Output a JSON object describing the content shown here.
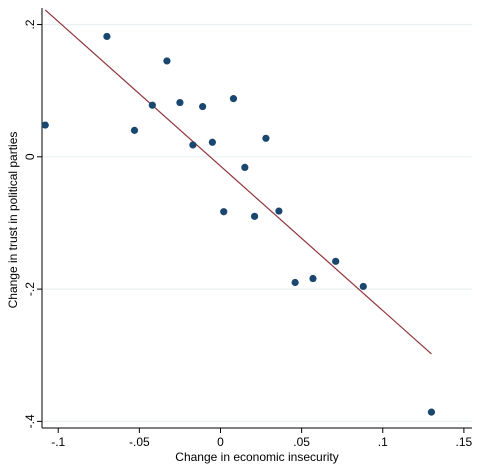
{
  "chart_data": {
    "type": "scatter",
    "title": "",
    "xlabel": "Change in economic insecurity",
    "ylabel": "Change in trust in political parties",
    "xlim": [
      -0.11,
      0.155
    ],
    "ylim": [
      -0.41,
      0.225
    ],
    "x_ticks": [
      -0.1,
      -0.05,
      0,
      0.05,
      0.1,
      0.15
    ],
    "x_tick_labels": [
      "-.1",
      "-.05",
      "0",
      ".05",
      ".1",
      ".15"
    ],
    "y_ticks": [
      0.2,
      0,
      -0.2,
      -0.4
    ],
    "y_tick_labels": [
      ".2",
      "0",
      "-.2",
      "-.4"
    ],
    "grid": "horizontal",
    "point_color": "#1a476f",
    "line_color": "#90353b",
    "series": [
      {
        "type": "scatter",
        "x": [
          -0.108,
          -0.07,
          -0.053,
          -0.042,
          -0.033,
          -0.025,
          -0.017,
          -0.011,
          -0.005,
          0.002,
          0.008,
          0.015,
          0.021,
          0.028,
          0.036,
          0.046,
          0.057,
          0.071,
          0.088,
          0.13
        ],
        "y": [
          0.048,
          0.182,
          0.04,
          0.078,
          0.145,
          0.082,
          0.018,
          0.076,
          0.022,
          -0.083,
          0.088,
          -0.016,
          -0.09,
          0.028,
          -0.082,
          -0.19,
          -0.184,
          -0.158,
          -0.196,
          -0.386
        ]
      },
      {
        "type": "line",
        "x": [
          -0.108,
          0.13
        ],
        "y": [
          0.222,
          -0.298
        ]
      }
    ]
  }
}
